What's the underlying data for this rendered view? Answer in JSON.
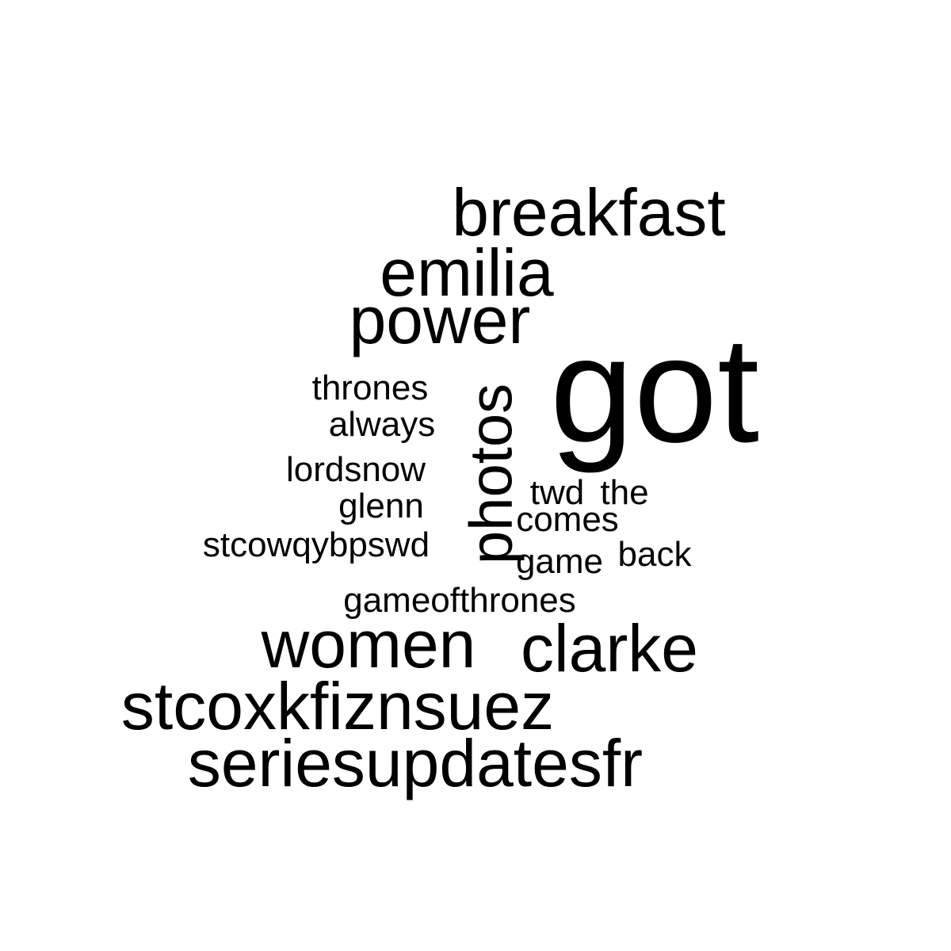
{
  "chart_data": {
    "type": "wordcloud",
    "color": "#000000",
    "background": "#ffffff",
    "words": [
      {
        "text": "got",
        "weight": 10,
        "vertical": false
      },
      {
        "text": "breakfast",
        "weight": 5,
        "vertical": false
      },
      {
        "text": "seriesupdatesfr",
        "weight": 5,
        "vertical": false
      },
      {
        "text": "stcoxkfiznsuez",
        "weight": 5,
        "vertical": false
      },
      {
        "text": "emilia",
        "weight": 5,
        "vertical": false
      },
      {
        "text": "power",
        "weight": 5,
        "vertical": false
      },
      {
        "text": "women",
        "weight": 5,
        "vertical": false
      },
      {
        "text": "clarke",
        "weight": 5,
        "vertical": false
      },
      {
        "text": "photos",
        "weight": 4,
        "vertical": true
      },
      {
        "text": "thrones",
        "weight": 2,
        "vertical": false
      },
      {
        "text": "always",
        "weight": 2,
        "vertical": false
      },
      {
        "text": "lordsnow",
        "weight": 2,
        "vertical": false
      },
      {
        "text": "glenn",
        "weight": 2,
        "vertical": false
      },
      {
        "text": "stcowqybpswd",
        "weight": 2,
        "vertical": false
      },
      {
        "text": "gameofthrones",
        "weight": 2,
        "vertical": false
      },
      {
        "text": "twd",
        "weight": 2,
        "vertical": false
      },
      {
        "text": "the",
        "weight": 2,
        "vertical": false
      },
      {
        "text": "comes",
        "weight": 2,
        "vertical": false
      },
      {
        "text": "game",
        "weight": 2,
        "vertical": false
      },
      {
        "text": "back",
        "weight": 2,
        "vertical": false
      }
    ]
  }
}
